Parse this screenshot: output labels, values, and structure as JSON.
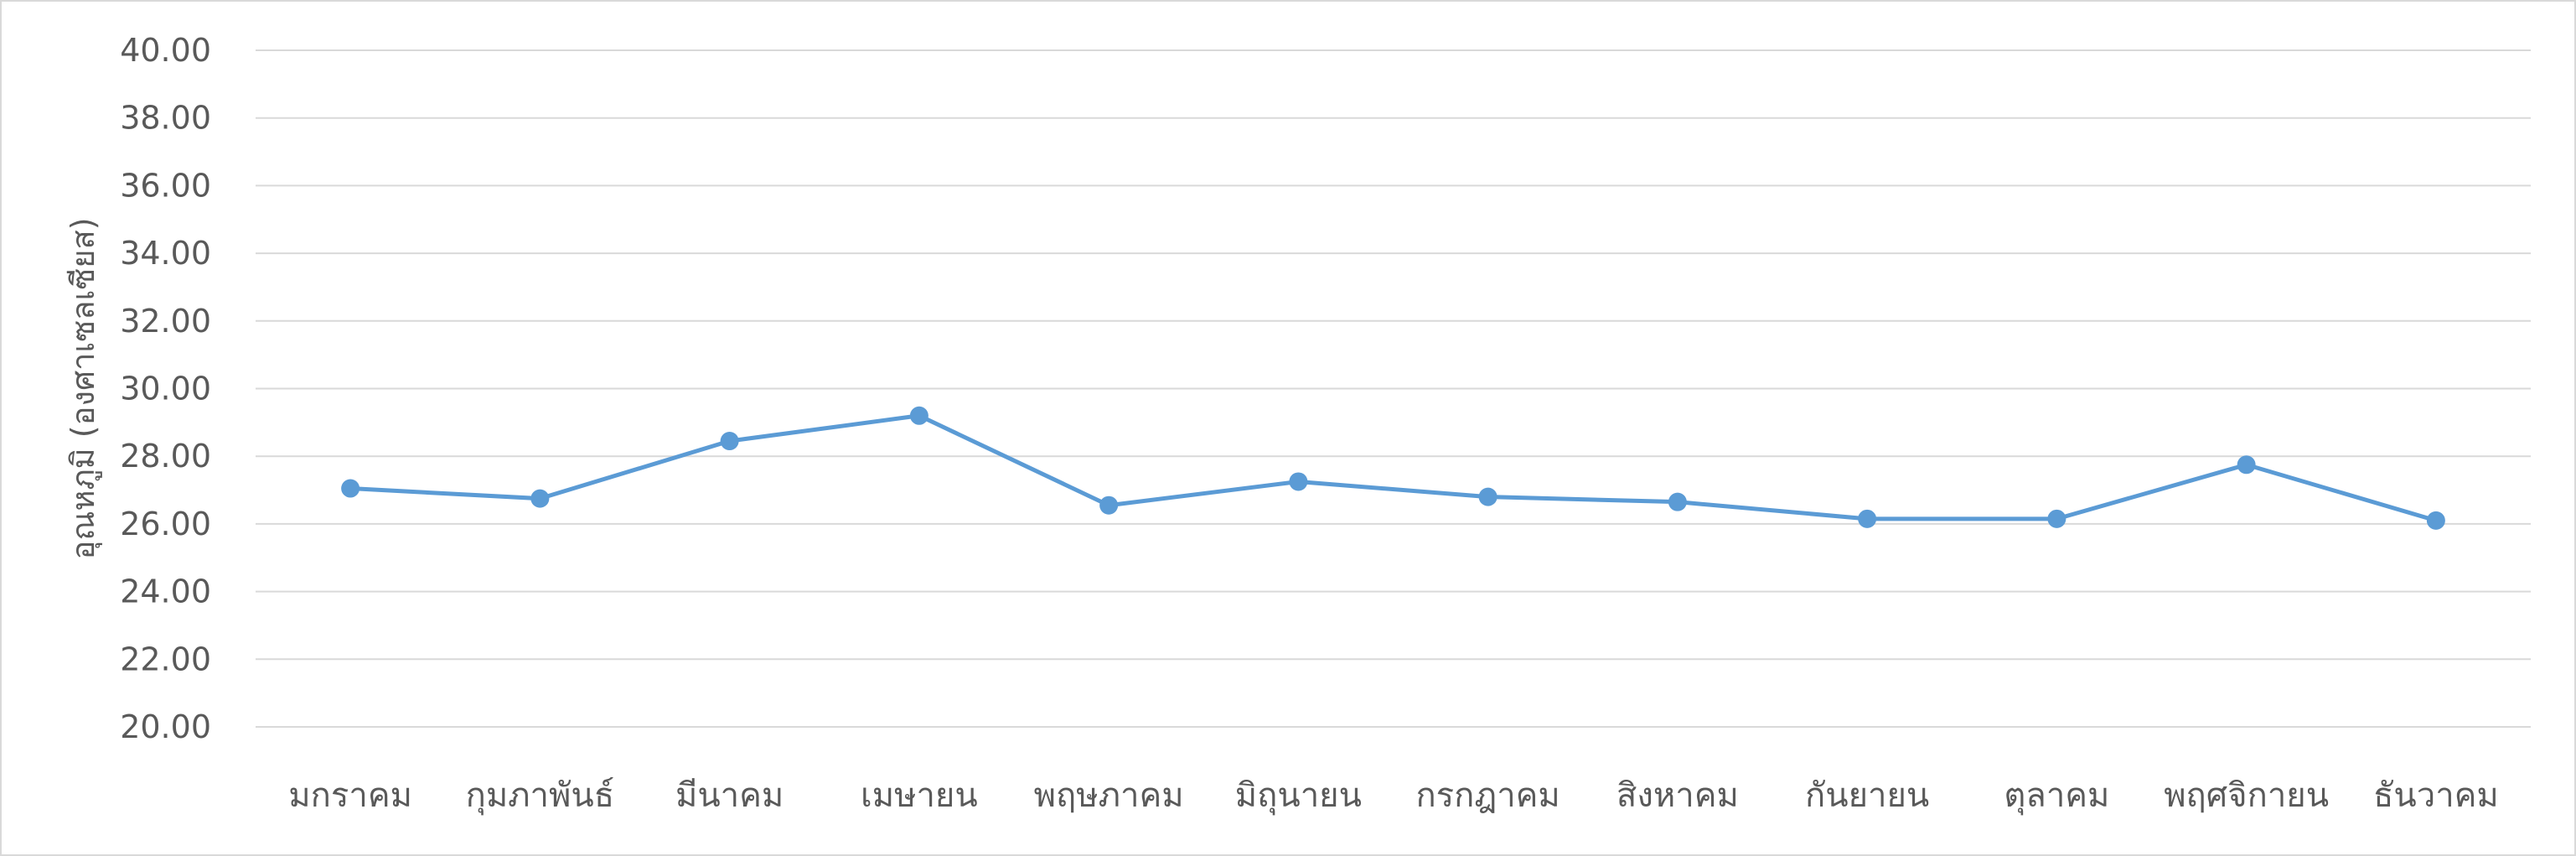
{
  "chart_data": {
    "type": "line",
    "title": "",
    "xlabel": "",
    "ylabel": "อุณหภูมิ (องศาเซลเซียส)",
    "ylim": [
      20,
      40
    ],
    "y_ticks": [
      "20.00",
      "22.00",
      "24.00",
      "26.00",
      "28.00",
      "30.00",
      "32.00",
      "34.00",
      "36.00",
      "38.00",
      "40.00"
    ],
    "categories": [
      "มกราคม",
      "กุมภาพันธ์",
      "มีนาคม",
      "เมษายน",
      "พฤษภาคม",
      "มิถุนายน",
      "กรกฎาคม",
      "สิงหาคม",
      "กันยายน",
      "ตุลาคม",
      "พฤศจิกายน",
      "ธันวาคม"
    ],
    "series": [
      {
        "values": [
          27.05,
          26.75,
          28.45,
          29.2,
          26.55,
          27.25,
          26.8,
          26.65,
          26.15,
          26.15,
          27.75,
          26.1
        ]
      }
    ],
    "grid": true,
    "legend": "none",
    "colors": {
      "series": "#5b9bd5",
      "grid": "#d9d9d9",
      "text": "#595959"
    }
  }
}
